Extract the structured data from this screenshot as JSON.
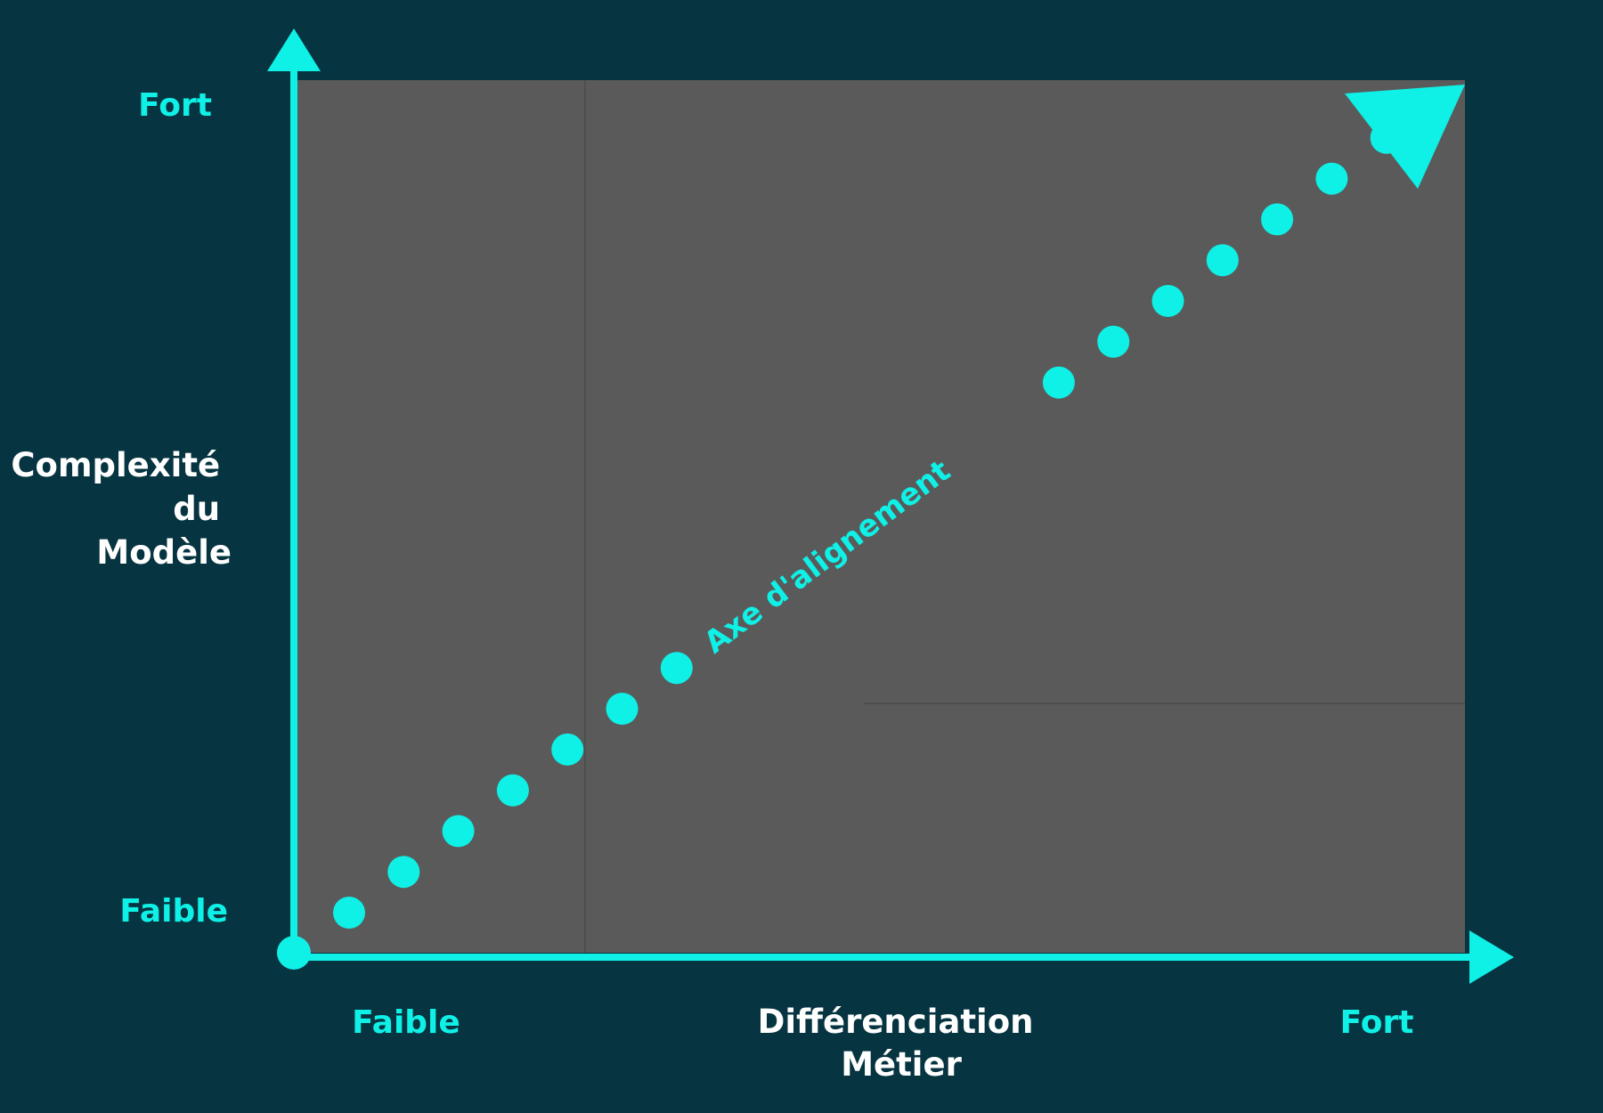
{
  "diagram": {
    "y_axis": {
      "title_lines": [
        "Complexité",
        "du",
        "Modèle"
      ],
      "high_label": "Fort",
      "low_label": "Faible"
    },
    "x_axis": {
      "title_lines": [
        "Différenciation",
        "Métier"
      ],
      "low_label": "Faible",
      "high_label": "Fort"
    },
    "diagonal_label": "Axe d'alignement",
    "dot_count": 20
  },
  "colors": {
    "background": "#063441",
    "panel": "#5a5a5a",
    "accent": "#0ff0e6",
    "title_text": "#ffffff",
    "divider": "#4e4e4e"
  }
}
